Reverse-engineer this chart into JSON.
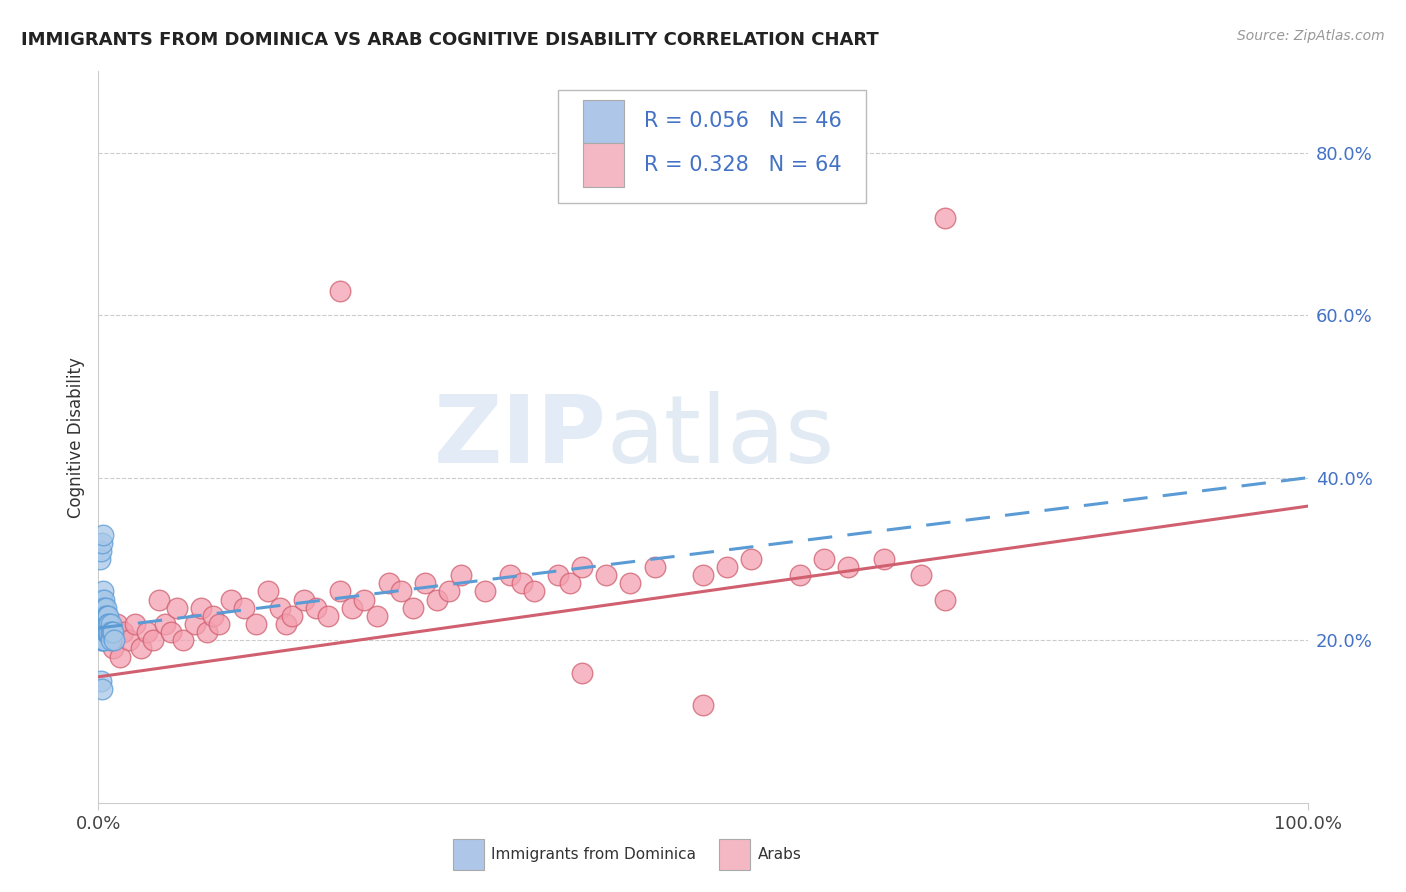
{
  "title": "IMMIGRANTS FROM DOMINICA VS ARAB COGNITIVE DISABILITY CORRELATION CHART",
  "source": "Source: ZipAtlas.com",
  "ylabel": "Cognitive Disability",
  "legend_label_1": "Immigrants from Dominica",
  "legend_label_2": "Arabs",
  "R1": 0.056,
  "N1": 46,
  "R2": 0.328,
  "N2": 64,
  "color_blue_fill": "#a8c8e8",
  "color_blue_edge": "#5b9bd5",
  "color_pink_fill": "#f4a0b0",
  "color_pink_edge": "#d06070",
  "color_blue_line": "#5b9bd5",
  "color_pink_line": "#d06070",
  "color_blue_legend_sq": "#aec6e8",
  "color_pink_legend_sq": "#f4b8c4",
  "watermark_zip": "ZIP",
  "watermark_atlas": "atlas",
  "xlim": [
    0.0,
    1.0
  ],
  "ylim": [
    0.0,
    0.9
  ],
  "yticks": [
    0.2,
    0.4,
    0.6,
    0.8
  ],
  "ytick_labels": [
    "20.0%",
    "40.0%",
    "60.0%",
    "80.0%"
  ],
  "xticks": [
    0.0,
    1.0
  ],
  "xtick_labels": [
    "0.0%",
    "100.0%"
  ],
  "blue_x": [
    0.001,
    0.001,
    0.002,
    0.002,
    0.002,
    0.003,
    0.003,
    0.003,
    0.003,
    0.003,
    0.003,
    0.004,
    0.004,
    0.004,
    0.004,
    0.004,
    0.004,
    0.005,
    0.005,
    0.005,
    0.005,
    0.005,
    0.006,
    0.006,
    0.006,
    0.006,
    0.007,
    0.007,
    0.007,
    0.008,
    0.008,
    0.008,
    0.009,
    0.009,
    0.01,
    0.01,
    0.01,
    0.011,
    0.012,
    0.013,
    0.001,
    0.002,
    0.003,
    0.004,
    0.002,
    0.003
  ],
  "blue_y": [
    0.24,
    0.22,
    0.23,
    0.21,
    0.2,
    0.25,
    0.24,
    0.23,
    0.22,
    0.21,
    0.2,
    0.26,
    0.24,
    0.23,
    0.22,
    0.21,
    0.2,
    0.25,
    0.24,
    0.23,
    0.22,
    0.2,
    0.24,
    0.23,
    0.22,
    0.21,
    0.23,
    0.22,
    0.21,
    0.23,
    0.22,
    0.21,
    0.22,
    0.21,
    0.22,
    0.21,
    0.2,
    0.21,
    0.21,
    0.2,
    0.3,
    0.31,
    0.32,
    0.33,
    0.15,
    0.14
  ],
  "pink_x": [
    0.01,
    0.012,
    0.015,
    0.018,
    0.02,
    0.025,
    0.03,
    0.035,
    0.04,
    0.045,
    0.05,
    0.055,
    0.06,
    0.065,
    0.07,
    0.08,
    0.085,
    0.09,
    0.095,
    0.1,
    0.11,
    0.12,
    0.13,
    0.14,
    0.15,
    0.155,
    0.16,
    0.17,
    0.18,
    0.19,
    0.2,
    0.21,
    0.22,
    0.23,
    0.24,
    0.25,
    0.26,
    0.27,
    0.28,
    0.29,
    0.3,
    0.32,
    0.34,
    0.35,
    0.36,
    0.38,
    0.39,
    0.4,
    0.42,
    0.44,
    0.46,
    0.5,
    0.52,
    0.54,
    0.58,
    0.6,
    0.62,
    0.65,
    0.68,
    0.7,
    0.2,
    0.7,
    0.4,
    0.5
  ],
  "pink_y": [
    0.2,
    0.19,
    0.22,
    0.18,
    0.21,
    0.2,
    0.22,
    0.19,
    0.21,
    0.2,
    0.25,
    0.22,
    0.21,
    0.24,
    0.2,
    0.22,
    0.24,
    0.21,
    0.23,
    0.22,
    0.25,
    0.24,
    0.22,
    0.26,
    0.24,
    0.22,
    0.23,
    0.25,
    0.24,
    0.23,
    0.26,
    0.24,
    0.25,
    0.23,
    0.27,
    0.26,
    0.24,
    0.27,
    0.25,
    0.26,
    0.28,
    0.26,
    0.28,
    0.27,
    0.26,
    0.28,
    0.27,
    0.29,
    0.28,
    0.27,
    0.29,
    0.28,
    0.29,
    0.3,
    0.28,
    0.3,
    0.29,
    0.3,
    0.28,
    0.25,
    0.63,
    0.72,
    0.16,
    0.12
  ]
}
